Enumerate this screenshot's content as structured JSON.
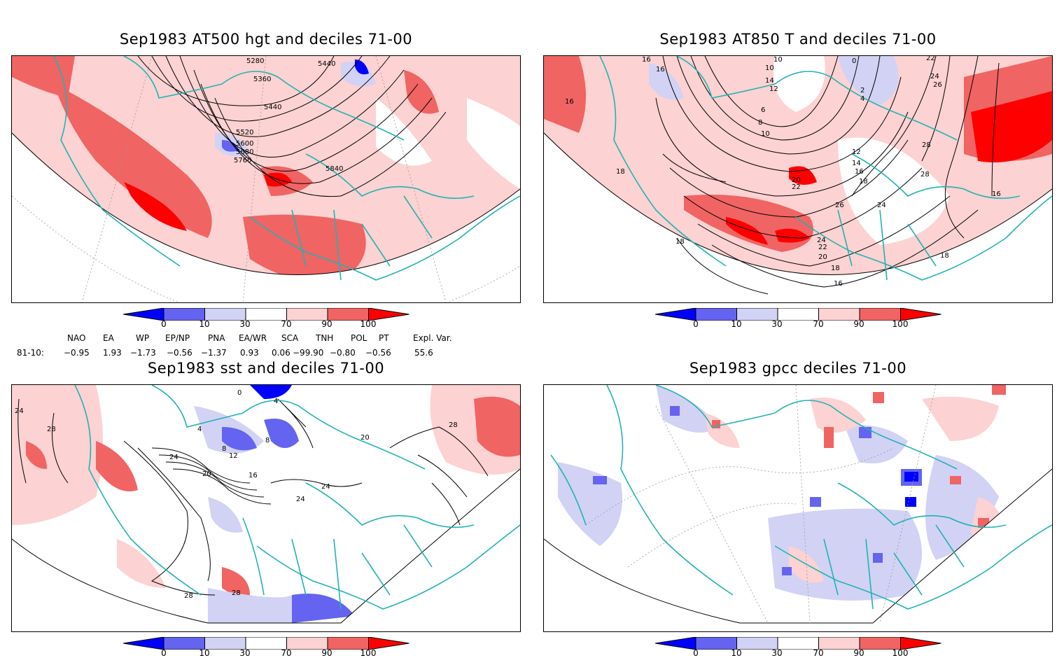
{
  "panels": [
    {
      "title": "Sep1983 AT500 hgt and deciles 71-00",
      "contour_labels": [
        "5280",
        "5360",
        "5440",
        "5440",
        "5520",
        "5600",
        "5680",
        "5760",
        "5840"
      ]
    },
    {
      "title": "Sep1983 AT850 T and deciles 71-00",
      "contour_labels": [
        "16",
        "16",
        "18",
        "10",
        "10",
        "14",
        "12",
        "0",
        "2",
        "4",
        "6",
        "8",
        "10",
        "12",
        "14",
        "16",
        "18",
        "20",
        "22",
        "24",
        "26",
        "28",
        "28",
        "18",
        "16",
        "24",
        "22",
        "20",
        "18",
        "16",
        "16",
        "18",
        "22",
        "24",
        "26"
      ]
    },
    {
      "title": "Sep1983 sst and deciles 71-00",
      "contour_labels": [
        "24",
        "28",
        "0",
        "4",
        "4",
        "8",
        "8",
        "12",
        "16",
        "20",
        "24",
        "24",
        "24",
        "28",
        "28",
        "28",
        "20"
      ]
    },
    {
      "title": "Sep1983 gpcc deciles 71-00",
      "contour_labels": []
    }
  ],
  "colorbar": {
    "ticks": [
      "0",
      "10",
      "30",
      "70",
      "90",
      "100"
    ],
    "colors": [
      "#0000ff",
      "#6464f0",
      "#d2d2f5",
      "#ffffff",
      "#fcd2d2",
      "#f06464",
      "#ff0000"
    ]
  },
  "indices": {
    "headers": [
      "NAO",
      "EA",
      "WP",
      "EP/NP",
      "PNA",
      "EA/WR",
      "SCA",
      "TNH",
      "POL",
      "PT",
      "Expl. Var."
    ],
    "row_label": "81-10:",
    "values": [
      "−0.95",
      "1.93",
      "−1.73",
      "−0.56",
      "−1.37",
      "0.93",
      "0.06",
      "−99.90",
      "−0.80",
      "−0.56",
      "55.6"
    ]
  },
  "colors": {
    "coast": "#22b3b3",
    "grid": "#999999"
  }
}
